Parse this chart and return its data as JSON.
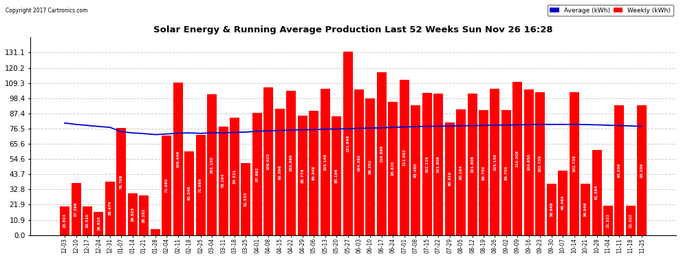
{
  "title": "Solar Energy & Running Average Production Last 52 Weeks Sun Nov 26 16:28",
  "copyright": "Copyright 2017 Cartronics.com",
  "bar_color": "#ff0000",
  "avg_line_color": "#0000cd",
  "background_color": "#ffffff",
  "grid_color": "#cccccc",
  "ylim_min": 0,
  "ylim_max": 142,
  "yticks": [
    0.0,
    10.9,
    21.9,
    32.8,
    43.7,
    54.6,
    65.6,
    76.5,
    87.4,
    98.4,
    109.3,
    120.2,
    131.1
  ],
  "categories": [
    "12-03",
    "12-10",
    "12-17",
    "12-24",
    "12-31",
    "01-07",
    "01-14",
    "01-21",
    "01-28",
    "02-04",
    "02-11",
    "02-18",
    "02-25",
    "03-04",
    "03-11",
    "03-18",
    "03-25",
    "04-01",
    "04-08",
    "04-15",
    "04-22",
    "04-29",
    "05-06",
    "05-13",
    "05-20",
    "05-27",
    "06-03",
    "06-10",
    "06-17",
    "06-24",
    "07-01",
    "07-08",
    "07-15",
    "07-22",
    "07-29",
    "08-05",
    "08-12",
    "08-19",
    "08-26",
    "09-02",
    "09-09",
    "09-16",
    "09-23",
    "09-30",
    "10-07",
    "10-14",
    "10-21",
    "10-28",
    "11-04",
    "11-11",
    "11-18",
    "11-25"
  ],
  "weekly_values": [
    20.824,
    37.396,
    20.51,
    16.61,
    38.474,
    76.708,
    29.825,
    28.352,
    4.312,
    71.66,
    109.446,
    60.348,
    71.864,
    101.13,
    78.164,
    84.531,
    51.533,
    87.692,
    106.022,
    90.596,
    103.696,
    85.776,
    89.348,
    105.148,
    85.196,
    131.948,
    104.392,
    98.352,
    116.896,
    95.82,
    111.592,
    93.48,
    102.116,
    101.808,
    80.916,
    90.164,
    101.608,
    89.75,
    105.156,
    89.75,
    110.308,
    104.65,
    102.738,
    36.948,
    46.464,
    102.738,
    36.946,
    61.364,
    21.322,
    93.036,
    21.322,
    93.036
  ],
  "avg_values": [
    80.5,
    79.5,
    78.8,
    78.0,
    77.4,
    74.2,
    73.4,
    72.9,
    72.2,
    72.6,
    73.2,
    73.4,
    73.1,
    73.4,
    73.5,
    73.8,
    74.0,
    74.6,
    74.9,
    75.1,
    75.4,
    75.7,
    75.7,
    76.1,
    76.2,
    76.4,
    76.7,
    76.9,
    77.1,
    77.4,
    77.7,
    77.9,
    78.1,
    78.2,
    78.4,
    78.5,
    78.6,
    78.8,
    79.0,
    79.0,
    79.2,
    79.4,
    79.5,
    79.5,
    79.5,
    79.5,
    79.4,
    79.2,
    78.9,
    78.7,
    78.4,
    78.1
  ]
}
